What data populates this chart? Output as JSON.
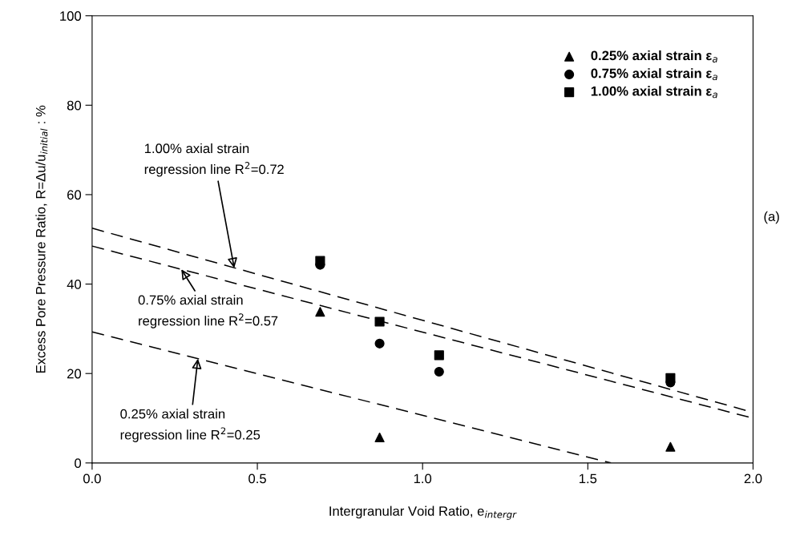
{
  "chart_data": {
    "type": "scatter",
    "xlabel": "Intergranular Void Ratio, e$_{intergr}$",
    "ylabel": "Excess Pore Pressure Ratio, R=Δu/u$_{initial}$ : %",
    "xlim": [
      0,
      2
    ],
    "ylim": [
      0,
      100
    ],
    "xticks": [
      {
        "value": 0,
        "label": "0.0"
      },
      {
        "value": 0.5,
        "label": "0.5"
      },
      {
        "value": 1,
        "label": "1.0"
      },
      {
        "value": 1.5,
        "label": "1.5"
      },
      {
        "value": 2,
        "label": "2.0"
      }
    ],
    "yticks": [
      0,
      20,
      40,
      60,
      80,
      100
    ],
    "grid": false,
    "legend": "top right",
    "series": [
      {
        "name": "0.25% axial strain ε$_{a}$",
        "type": "scatter",
        "marker": "triangle",
        "color": "#000000",
        "x": [
          0.69,
          0.87,
          1.75
        ],
        "values": [
          33.8,
          5.7,
          3.6
        ]
      },
      {
        "name": "0.75% axial strain ε$_{a}$",
        "marker": "circle",
        "color": "#000000",
        "x": [
          0.69,
          0.87,
          1.05,
          1.75
        ],
        "values": [
          44.3,
          26.7,
          20.4,
          18.0
        ]
      },
      {
        "name": "1.00% axial strain ε$_{a}$",
        "marker": "square",
        "color": "#000000",
        "x": [
          0.69,
          0.87,
          1.05,
          1.75
        ],
        "values": [
          45.2,
          31.6,
          24.1,
          19.0
        ]
      },
      {
        "type": "line",
        "line_style": "dashed",
        "marker": "none",
        "color": "#000000",
        "x": [
          0,
          2
        ],
        "values": [
          52.5,
          11.3
        ]
      },
      {
        "type": "line",
        "line_style": "dashed",
        "marker": "none",
        "color": "#000000",
        "x": [
          0,
          2
        ],
        "values": [
          48.5,
          10.0
        ]
      },
      {
        "type": "line",
        "line_style": "dashed",
        "marker": "none",
        "color": "#000000",
        "x": [
          0,
          1.57
        ],
        "values": [
          29.3,
          0
        ]
      }
    ],
    "annotations": [
      {
        "text": "1.00% axial strain\nregression line R$^{2}$=0.72",
        "x": 0.43,
        "y": 43.6
      },
      {
        "text": "0.75% axial strain\nregression line R$^{2}$=0.57",
        "x": 0.27,
        "y": 43.3
      },
      {
        "text": "0.25% axial strain\nregression line R$^{2}$=0.25",
        "x": 0.32,
        "y": 23.3
      },
      "(a)"
    ]
  }
}
